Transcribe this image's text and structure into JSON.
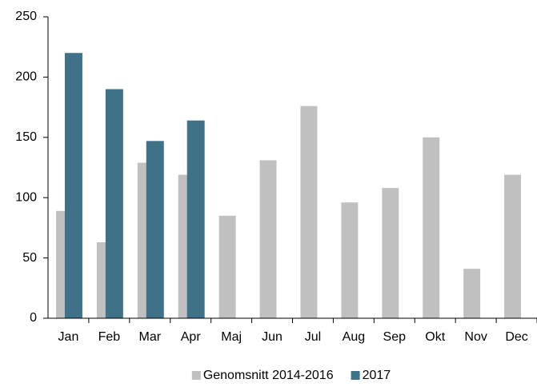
{
  "chart_data": {
    "type": "bar",
    "categories": [
      "Jan",
      "Feb",
      "Mar",
      "Apr",
      "Maj",
      "Jun",
      "Jul",
      "Aug",
      "Sep",
      "Okt",
      "Nov",
      "Dec"
    ],
    "series": [
      {
        "name": "Genomsnitt 2014-2016",
        "color": "#c0c0c0",
        "values": [
          89,
          63,
          129,
          119,
          85,
          131,
          176,
          96,
          108,
          150,
          41,
          119
        ]
      },
      {
        "name": "2017",
        "color": "#3f7189",
        "values": [
          220,
          190,
          147,
          164,
          null,
          null,
          null,
          null,
          null,
          null,
          null,
          null
        ]
      }
    ],
    "ylim": [
      0,
      250
    ],
    "yticks": [
      0,
      50,
      100,
      150,
      200,
      250
    ],
    "grid": false,
    "legend": "bottom"
  }
}
